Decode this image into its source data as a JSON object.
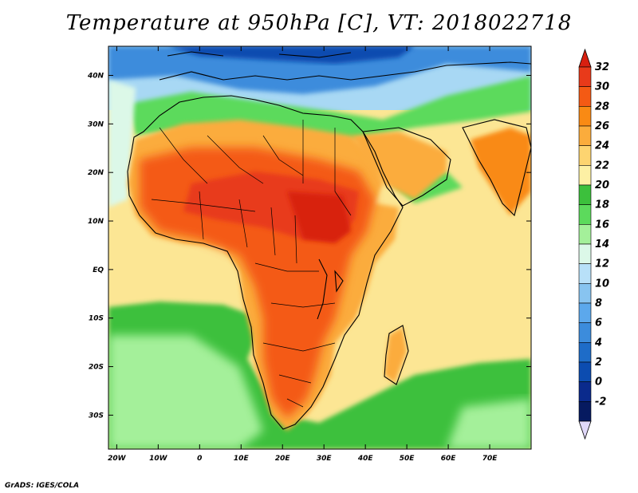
{
  "title": "Temperature at 950hPa [C], VT: 2018022718",
  "footer": "GrADS: IGES/COLA",
  "map": {
    "lon_range": [
      -22,
      80
    ],
    "lat_range": [
      -37,
      46
    ],
    "lon_ticks": [
      {
        "value": -20,
        "label": "20W"
      },
      {
        "value": -10,
        "label": "10W"
      },
      {
        "value": 0,
        "label": "0"
      },
      {
        "value": 10,
        "label": "10E"
      },
      {
        "value": 20,
        "label": "20E"
      },
      {
        "value": 30,
        "label": "30E"
      },
      {
        "value": 40,
        "label": "40E"
      },
      {
        "value": 50,
        "label": "50E"
      },
      {
        "value": 60,
        "label": "60E"
      },
      {
        "value": 70,
        "label": "70E"
      }
    ],
    "lat_ticks": [
      {
        "value": 40,
        "label": "40N"
      },
      {
        "value": 30,
        "label": "30N"
      },
      {
        "value": 20,
        "label": "20N"
      },
      {
        "value": 10,
        "label": "10N"
      },
      {
        "value": 0,
        "label": "EQ"
      },
      {
        "value": -10,
        "label": "10S"
      },
      {
        "value": -20,
        "label": "20S"
      },
      {
        "value": -30,
        "label": "30S"
      }
    ],
    "ocean_color": "#fce694",
    "continent_color": "#f5a64a"
  },
  "colorbar": {
    "levels": [
      {
        "value": "32",
        "color": "#e83a1a"
      },
      {
        "value": "30",
        "color": "#f45a14"
      },
      {
        "value": "28",
        "color": "#f98a14"
      },
      {
        "value": "26",
        "color": "#fbac3c"
      },
      {
        "value": "24",
        "color": "#fdd470"
      },
      {
        "value": "22",
        "color": "#fdf0a4"
      },
      {
        "value": "20",
        "color": "#3cc03c"
      },
      {
        "value": "18",
        "color": "#5cda5c"
      },
      {
        "value": "16",
        "color": "#a4f09a"
      },
      {
        "value": "14",
        "color": "#dcf8e8"
      },
      {
        "value": "12",
        "color": "#b8e0f8"
      },
      {
        "value": "10",
        "color": "#88c4f0"
      },
      {
        "value": "8",
        "color": "#5ca8ec"
      },
      {
        "value": "6",
        "color": "#3c8cdc"
      },
      {
        "value": "4",
        "color": "#1e6cc8"
      },
      {
        "value": "2",
        "color": "#0c4cb0"
      },
      {
        "value": "0",
        "color": "#0a2a8c"
      },
      {
        "value": "-2",
        "color": "#061a60"
      }
    ],
    "top_arrow_color": "#d82010",
    "bottom_arrow_color": "#e0d8f8"
  }
}
